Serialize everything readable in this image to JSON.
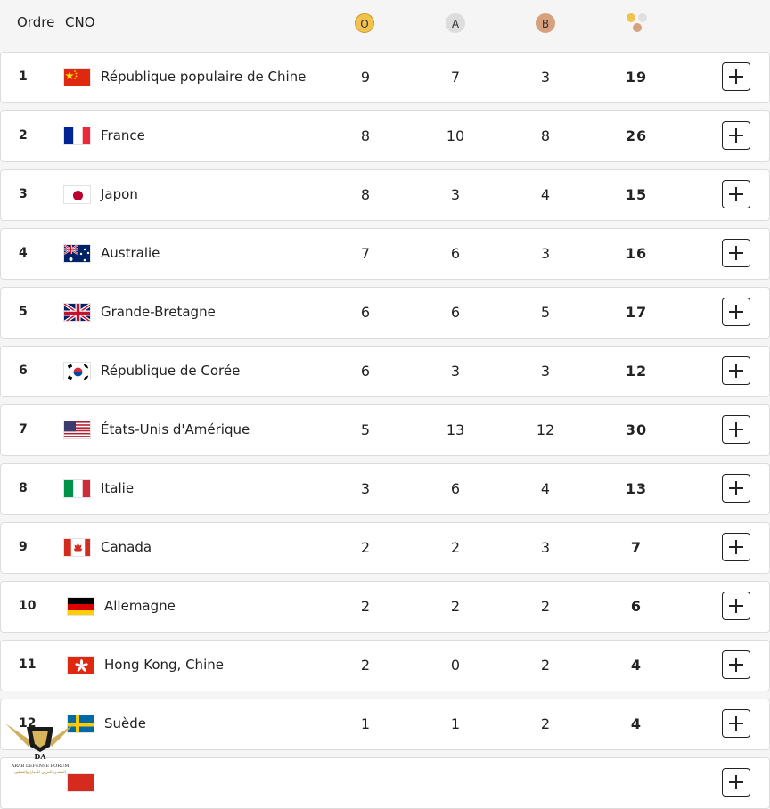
{
  "header": {
    "order_label": "Ordre",
    "noc_label": "CNO",
    "gold_label": "O",
    "silver_label": "A",
    "bronze_label": "B",
    "total_icon": "medals-icon"
  },
  "rows": [
    {
      "rank": "1",
      "country": "République populaire de Chine",
      "flag": "china-flag-icon",
      "gold": "9",
      "silver": "7",
      "bronze": "3",
      "total": "19"
    },
    {
      "rank": "2",
      "country": "France",
      "flag": "france-flag-icon",
      "gold": "8",
      "silver": "10",
      "bronze": "8",
      "total": "26"
    },
    {
      "rank": "3",
      "country": "Japon",
      "flag": "japan-flag-icon",
      "gold": "8",
      "silver": "3",
      "bronze": "4",
      "total": "15"
    },
    {
      "rank": "4",
      "country": "Australie",
      "flag": "australia-flag-icon",
      "gold": "7",
      "silver": "6",
      "bronze": "3",
      "total": "16"
    },
    {
      "rank": "5",
      "country": "Grande-Bretagne",
      "flag": "great-britain-flag-icon",
      "gold": "6",
      "silver": "6",
      "bronze": "5",
      "total": "17"
    },
    {
      "rank": "6",
      "country": "République de Corée",
      "flag": "korea-flag-icon",
      "gold": "6",
      "silver": "3",
      "bronze": "3",
      "total": "12"
    },
    {
      "rank": "7",
      "country": "États-Unis d'Amérique",
      "flag": "usa-flag-icon",
      "gold": "5",
      "silver": "13",
      "bronze": "12",
      "total": "30"
    },
    {
      "rank": "8",
      "country": "Italie",
      "flag": "italy-flag-icon",
      "gold": "3",
      "silver": "6",
      "bronze": "4",
      "total": "13"
    },
    {
      "rank": "9",
      "country": "Canada",
      "flag": "canada-flag-icon",
      "gold": "2",
      "silver": "2",
      "bronze": "3",
      "total": "7"
    },
    {
      "rank": "10",
      "country": "Allemagne",
      "flag": "germany-flag-icon",
      "gold": "2",
      "silver": "2",
      "bronze": "2",
      "total": "6"
    },
    {
      "rank": "11",
      "country": "Hong Kong, Chine",
      "flag": "hong-kong-flag-icon",
      "gold": "2",
      "silver": "0",
      "bronze": "2",
      "total": "4"
    },
    {
      "rank": "12",
      "country": "Suède",
      "flag": "sweden-flag-icon",
      "gold": "1",
      "silver": "1",
      "bronze": "2",
      "total": "4"
    },
    {
      "rank": "",
      "country": "",
      "flag": "red-flag-icon",
      "gold": "",
      "silver": "",
      "bronze": "",
      "total": ""
    }
  ],
  "watermark": {
    "logo_text": "ARAB DEFENSE FORUM",
    "logo_sub": "المنتدى العربي للدفاع والتسليح",
    "mark": "DA"
  },
  "colors": {
    "gold": "#f2c14e",
    "silver": "#dddddd",
    "bronze": "#d6a17c",
    "row_bg": "#ffffff",
    "page_bg": "#f5f5f5"
  }
}
